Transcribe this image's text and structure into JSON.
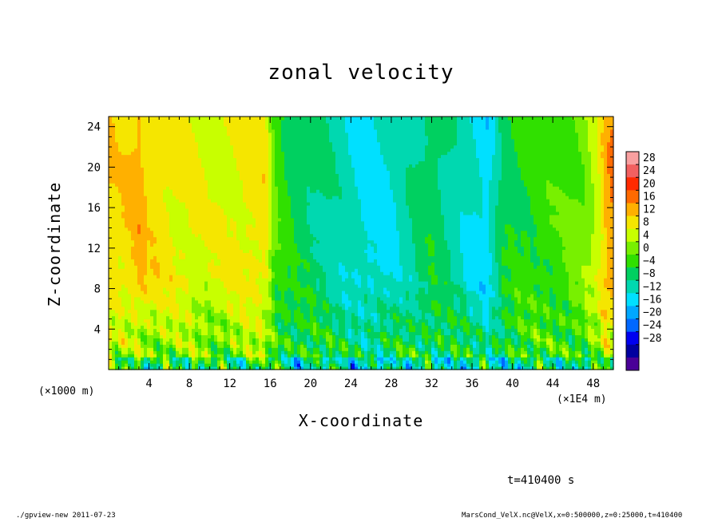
{
  "chart_data": {
    "type": "heatmap",
    "title": "zonal velocity",
    "xlabel": "X-coordinate",
    "ylabel": "Z-coordinate",
    "x_unit_left": "(×1000 m)",
    "x_unit_right": "(×1E4 m)",
    "xlim": [
      0,
      50
    ],
    "ylim": [
      0,
      25
    ],
    "x_ticks": [
      "4",
      "8",
      "12",
      "16",
      "20",
      "24",
      "28",
      "32",
      "36",
      "40",
      "44",
      "48"
    ],
    "y_ticks": [
      "4",
      "8",
      "12",
      "16",
      "20",
      "24"
    ],
    "colorbar": {
      "levels": [
        "28",
        "24",
        "20",
        "16",
        "12",
        "8",
        "4",
        "0",
        "−4",
        "−8",
        "−12",
        "−16",
        "−20",
        "−24",
        "−28"
      ],
      "range": [
        -30,
        30
      ],
      "colors": [
        "#f9a0a0",
        "#f26060",
        "#ff2a00",
        "#ff6a00",
        "#ffb000",
        "#f5e600",
        "#c8ff00",
        "#78f000",
        "#30e000",
        "#00d060",
        "#00d8b0",
        "#00e0ff",
        "#00a8ff",
        "#0068ff",
        "#0000f0",
        "#0000a0",
        "#4a0098"
      ]
    },
    "column_profile": [
      {
        "x": 0,
        "v": 12
      },
      {
        "x": 1,
        "v": 11
      },
      {
        "x": 2,
        "v": 12
      },
      {
        "x": 3,
        "v": 14
      },
      {
        "x": 4,
        "v": 11
      },
      {
        "x": 6,
        "v": 10
      },
      {
        "x": 8,
        "v": 9
      },
      {
        "x": 10,
        "v": 8
      },
      {
        "x": 12,
        "v": 9
      },
      {
        "x": 14,
        "v": 10
      },
      {
        "x": 15.5,
        "v": 11
      },
      {
        "x": 16.5,
        "v": 1
      },
      {
        "x": 18,
        "v": -2
      },
      {
        "x": 20,
        "v": -4
      },
      {
        "x": 22,
        "v": -6
      },
      {
        "x": 24,
        "v": -8
      },
      {
        "x": 26,
        "v": -10
      },
      {
        "x": 28,
        "v": -9
      },
      {
        "x": 30,
        "v": -6
      },
      {
        "x": 32,
        "v": -3
      },
      {
        "x": 34,
        "v": -6
      },
      {
        "x": 36,
        "v": -9
      },
      {
        "x": 37.5,
        "v": -11
      },
      {
        "x": 39,
        "v": -3
      },
      {
        "x": 41,
        "v": -1
      },
      {
        "x": 43,
        "v": 0
      },
      {
        "x": 45,
        "v": 1
      },
      {
        "x": 47,
        "v": 3
      },
      {
        "x": 48.5,
        "v": 8
      },
      {
        "x": 49.3,
        "v": 14
      },
      {
        "x": 50,
        "v": 16
      }
    ]
  },
  "annotations": {
    "time": "t=410400 s",
    "footer_left": "./gpview-new   2011-07-23",
    "footer_right": "MarsCond_VelX.nc@VelX,x=0:500000,z=0:25000,t=410400"
  }
}
